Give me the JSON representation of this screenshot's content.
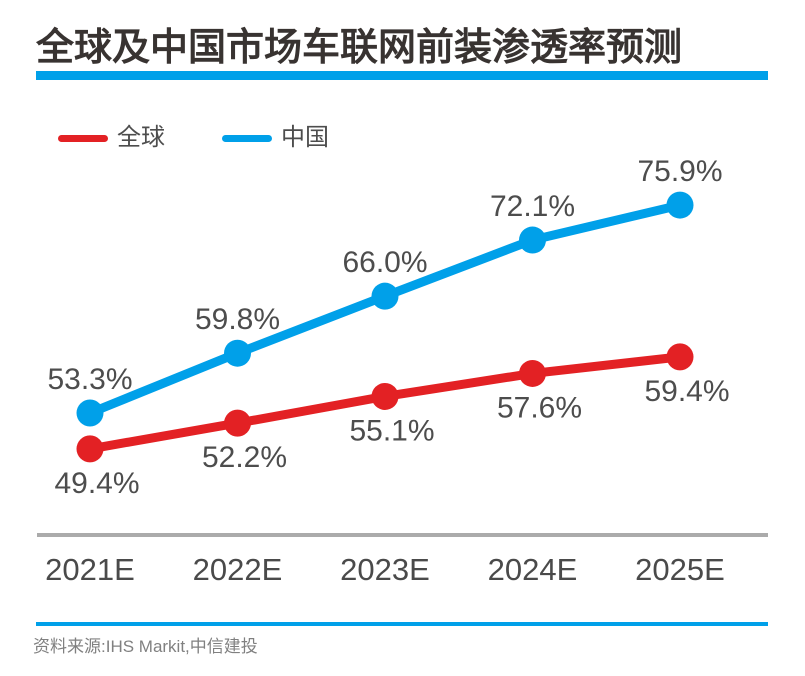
{
  "page": {
    "title": "全球及中国市场车联网前装渗透率预测",
    "source_note": "资料来源:IHS Markit,中信建投"
  },
  "colors": {
    "accent_blue": "#00A0E9",
    "series_global_red": "#E32124",
    "series_china_blue": "#00A0E9",
    "data_label_gray": "#4D4D4D",
    "axis_line_gray": "#ABABAB",
    "source_text_gray": "#808080",
    "title_text": "#383331"
  },
  "chart_data": {
    "type": "line",
    "title": "全球及中国市场车联网前装渗透率预测",
    "categories": [
      "2021E",
      "2022E",
      "2023E",
      "2024E",
      "2025E"
    ],
    "series": [
      {
        "name": "全球",
        "color": "#E32124",
        "values": [
          49.4,
          52.2,
          55.1,
          57.6,
          59.4
        ],
        "label_position": "below"
      },
      {
        "name": "中国",
        "color": "#00A0E9",
        "values": [
          53.3,
          59.8,
          66.0,
          72.1,
          75.9
        ],
        "label_position": "above"
      }
    ],
    "value_suffix": "%",
    "value_decimals": 1,
    "xlabel": "",
    "ylabel": "",
    "grid": false,
    "axes_shown": false,
    "legend_position": "top-left",
    "approx_value_range": [
      49.4,
      75.9
    ]
  }
}
